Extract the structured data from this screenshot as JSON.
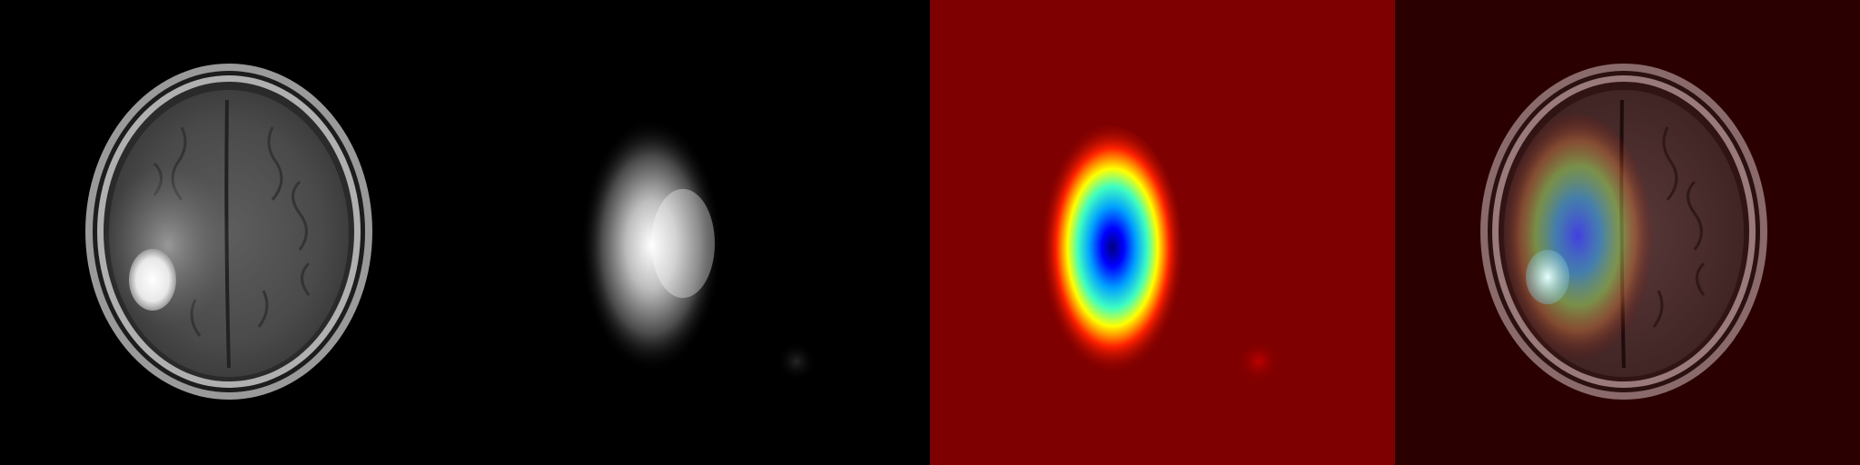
{
  "panels": [
    {
      "id": "mri-original",
      "kind": "grayscale-mri",
      "background": "#000000"
    },
    {
      "id": "attention-map-grayscale",
      "kind": "grayscale-heatmap",
      "background": "#000000"
    },
    {
      "id": "attention-map-jet",
      "kind": "jet-colormap-heatmap",
      "background": "#7f0000"
    },
    {
      "id": "overlay",
      "kind": "heatmap-overlay-on-mri",
      "background": "#2a0000"
    }
  ],
  "colors": {
    "jet_low": "#7f0000",
    "jet_red": "#ff0000",
    "jet_yellow": "#ffff00",
    "jet_cyan": "#00ffff",
    "jet_blue": "#0000ff",
    "jet_peak": "#00007f",
    "overlay_tint": "#3a0000"
  }
}
